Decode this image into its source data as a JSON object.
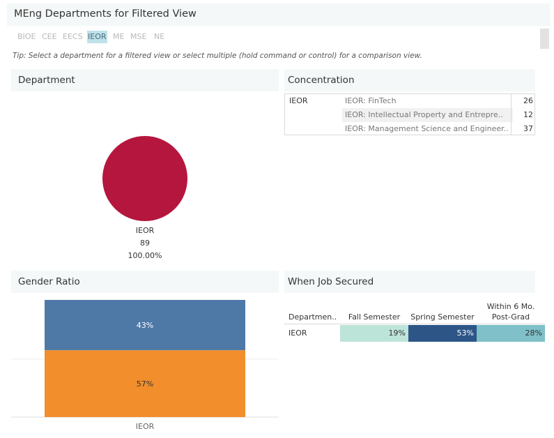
{
  "header": {
    "title": "MEng Departments for Filtered View"
  },
  "department_filter": {
    "items": [
      {
        "label": "BIOE",
        "selected": false
      },
      {
        "label": "CEE",
        "selected": false
      },
      {
        "label": "EECS",
        "selected": false
      },
      {
        "label": "IEOR",
        "selected": true
      },
      {
        "label": "ME",
        "selected": false
      },
      {
        "label": "MSE",
        "selected": false
      },
      {
        "label": "NE",
        "selected": false
      }
    ]
  },
  "tip": "Tip: Select a department for a filtered view or select multiple (hold command or control) for a comparison view.",
  "department_panel": {
    "title": "Department",
    "pie": {
      "label": "IEOR",
      "value": "89",
      "percent": "100.00%",
      "color": "#b5163e"
    }
  },
  "concentration_panel": {
    "title": "Concentration",
    "department": "IEOR",
    "rows": [
      {
        "name": "IEOR: FinTech",
        "count": "26"
      },
      {
        "name": "IEOR: Intellectual Property and Entrepre..",
        "count": "12"
      },
      {
        "name": "IEOR: Management Science and Engineer..",
        "count": "37"
      }
    ]
  },
  "gender_panel": {
    "title": "Gender Ratio"
  },
  "job_panel": {
    "title": "When Job Secured",
    "headers": [
      "Departmen..",
      "Fall Semester",
      "Spring Semester",
      "Within 6 Mo.",
      "Post-Grad"
    ],
    "row": {
      "department": "IEOR",
      "fall": "19%",
      "spring": "53%",
      "within6": "28%"
    },
    "colors": {
      "fall": "#bde4d9",
      "spring": "#2d5687",
      "within6": "#7fc0c9"
    }
  },
  "chart_data": {
    "type": "bar",
    "stacked": true,
    "title": "Gender Ratio",
    "categories": [
      "IEOR"
    ],
    "series": [
      {
        "name": "segment-top",
        "values": [
          43
        ],
        "label": "43%",
        "color": "#4e79a7"
      },
      {
        "name": "segment-bottom",
        "values": [
          57
        ],
        "label": "57%",
        "color": "#f28e2b"
      }
    ],
    "ylim": [
      0,
      100
    ],
    "xlabel": "",
    "ylabel": ""
  }
}
